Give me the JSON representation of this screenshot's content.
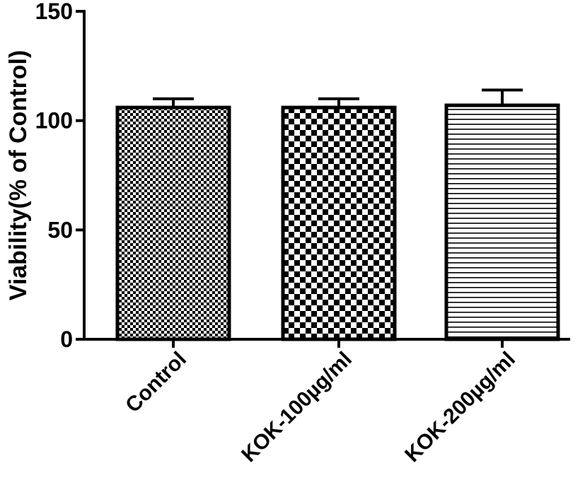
{
  "chart_data": {
    "type": "bar",
    "title": "",
    "xlabel": "",
    "ylabel": "Viability(% of Control)",
    "categories": [
      "Control",
      "KOK-100µg/ml",
      "KOK-200µg/ml"
    ],
    "values": [
      106,
      106,
      107
    ],
    "error_upper": [
      4,
      4,
      7
    ],
    "ylim": [
      0,
      150
    ],
    "yticks": [
      0,
      50,
      100,
      150
    ],
    "ytick_labels": [
      "0",
      "50",
      "100",
      "150"
    ],
    "bar_patterns": [
      "fine-checker",
      "coarse-checker",
      "horizontal-lines"
    ],
    "colors": {
      "stroke": "#000000",
      "fill": "#ffffff"
    },
    "grid": false,
    "legend": "none"
  }
}
